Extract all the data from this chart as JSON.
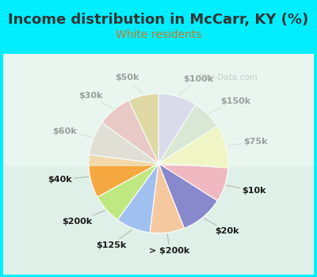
{
  "title": "Income distribution in McCarr, KY (%)",
  "subtitle": "White residents",
  "title_color": "#333333",
  "subtitle_color": "#cc7722",
  "background_outer": "#00eeff",
  "background_inner_top": "#e8f5f0",
  "background_inner_bottom": "#f0f8f0",
  "watermark": "City-Data.com",
  "labels": [
    "$100k",
    "$150k",
    "$75k",
    "$10k",
    "$20k",
    "> $200k",
    "$125k",
    "$200k",
    "$40k",
    "$60k",
    "$30k",
    "$50k"
  ],
  "colors": [
    "#b8aedd",
    "#b8cfa8",
    "#f0f080",
    "#f0b8c0",
    "#8888cc",
    "#f5c8a0",
    "#a0c0f0",
    "#c0e880",
    "#f5a840",
    "#c8b8a8",
    "#e08080",
    "#c8a830"
  ],
  "sizes": [
    9,
    7,
    10,
    8,
    10,
    8,
    8,
    7,
    10,
    8,
    8,
    7
  ],
  "label_fontsize": 8,
  "title_fontsize": 13,
  "subtitle_fontsize": 10,
  "startangle": 90
}
